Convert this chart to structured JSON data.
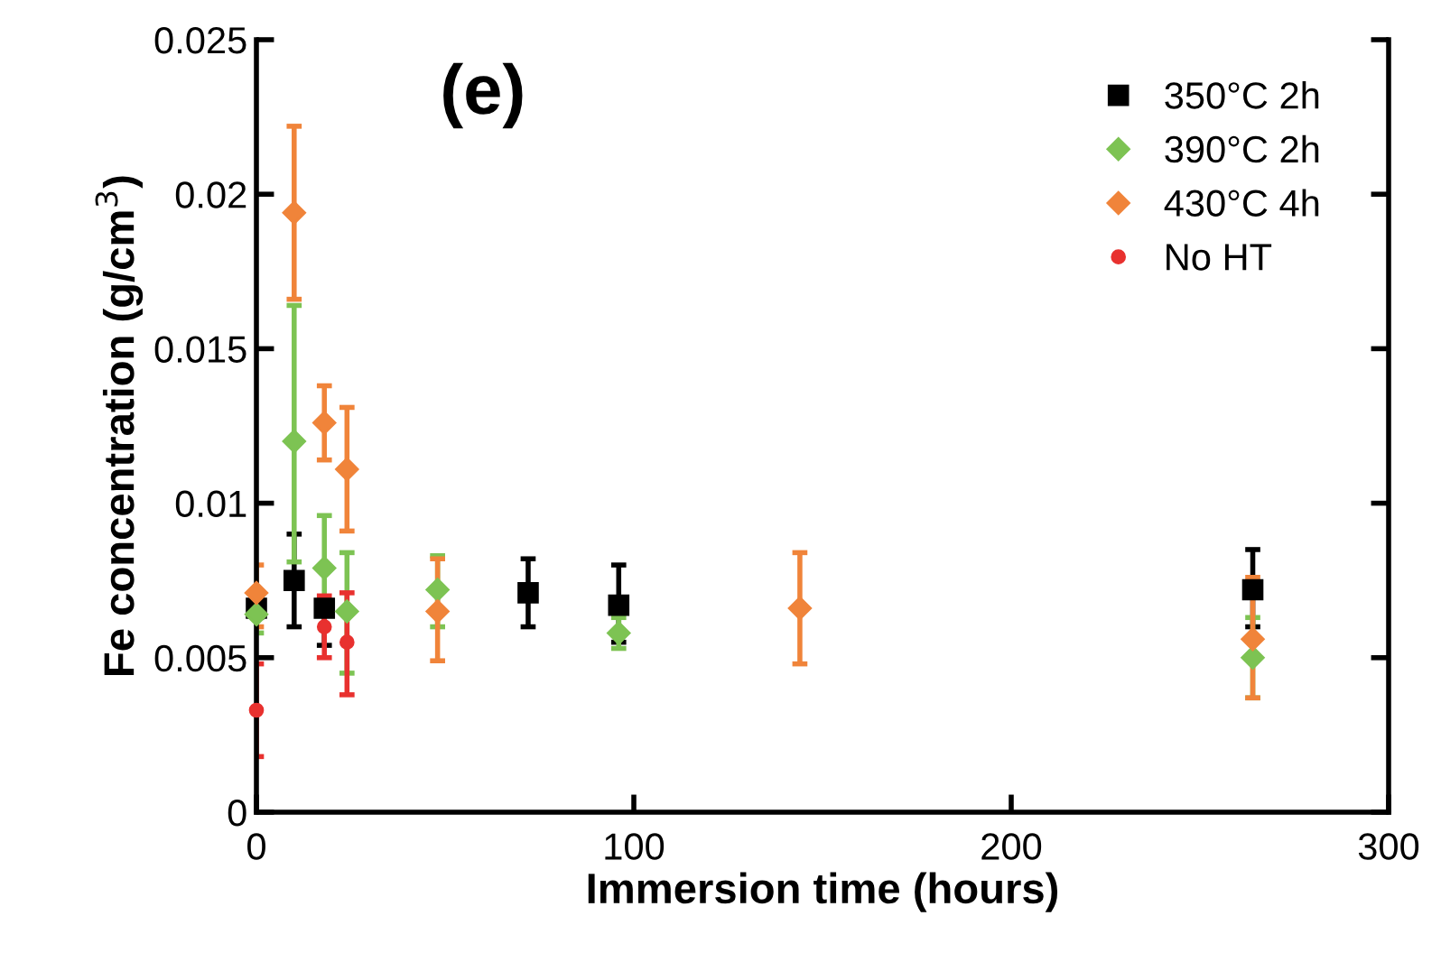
{
  "chart_data": {
    "type": "scatter",
    "xlabel": "Immersion time (hours)",
    "ylabel": "Fe concentration (g/cm$^{3}$)",
    "xlim": [
      0,
      300
    ],
    "xticks": [
      0,
      100,
      200,
      300
    ],
    "ylim": [
      0,
      0.025
    ],
    "yticks": [
      0,
      0.005,
      0.01,
      0.015,
      0.02,
      0.025
    ],
    "grid": false,
    "legend": "top right",
    "annotations": [
      "(e)"
    ],
    "series": [
      {
        "name": "350°C 2h",
        "color": "#000000",
        "marker": "square",
        "x": [
          0,
          10,
          18,
          72,
          96,
          264
        ],
        "values": [
          0.0066,
          0.0075,
          0.0066,
          0.0071,
          0.0067,
          0.0072
        ],
        "errors": [
          [
            0.0063,
            0.0069
          ],
          [
            0.006,
            0.009
          ],
          [
            0.0054,
            0.0068
          ],
          [
            0.006,
            0.0082
          ],
          [
            0.0055,
            0.008
          ],
          [
            0.006,
            0.0085
          ]
        ]
      },
      {
        "name": "390°C 2h",
        "color": "#7dc353",
        "marker": "diamond",
        "x": [
          0,
          10,
          18,
          24,
          48,
          96,
          264
        ],
        "values": [
          0.0064,
          0.012,
          0.0079,
          0.0065,
          0.0072,
          0.0058,
          0.005
        ],
        "errors": [
          [
            0.0058,
            0.007
          ],
          [
            0.0081,
            0.0164
          ],
          [
            0.0064,
            0.0096
          ],
          [
            0.0045,
            0.0084
          ],
          [
            0.006,
            0.0083
          ],
          [
            0.0053,
            0.0063
          ],
          [
            0.0037,
            0.0063
          ]
        ]
      },
      {
        "name": "430°C 4h",
        "color": "#f0843a",
        "marker": "diamond",
        "x": [
          0,
          10,
          18,
          24,
          48,
          144,
          264
        ],
        "values": [
          0.0071,
          0.0194,
          0.0126,
          0.0111,
          0.0065,
          0.0066,
          0.0056
        ],
        "errors": [
          [
            0.006,
            0.008
          ],
          [
            0.0166,
            0.0222
          ],
          [
            0.0114,
            0.0138
          ],
          [
            0.0091,
            0.0131
          ],
          [
            0.0049,
            0.0082
          ],
          [
            0.0048,
            0.0084
          ],
          [
            0.0037,
            0.0076
          ]
        ]
      },
      {
        "name": "No HT",
        "color": "#e8312f",
        "marker": "circle",
        "x": [
          0,
          18,
          24
        ],
        "values": [
          0.0033,
          0.006,
          0.0055
        ],
        "errors": [
          [
            0.0018,
            0.0048
          ],
          [
            0.005,
            0.007
          ],
          [
            0.0038,
            0.0071
          ]
        ]
      }
    ]
  }
}
